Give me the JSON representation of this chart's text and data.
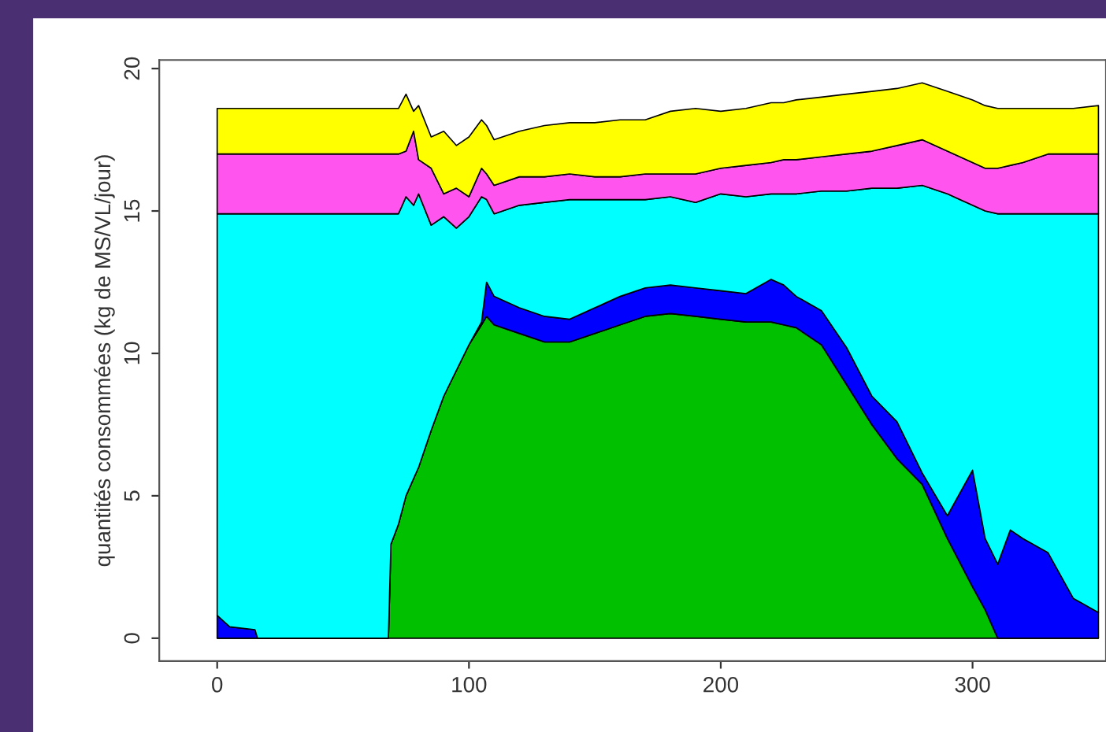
{
  "chart_data": {
    "type": "area",
    "stacked": true,
    "ylabel": "quantités consommées (kg de MS/VL/jour)",
    "x": [
      0,
      5,
      15,
      16,
      68,
      69,
      72,
      75,
      78,
      80,
      85,
      90,
      95,
      100,
      105,
      107,
      110,
      120,
      130,
      140,
      150,
      160,
      170,
      180,
      190,
      200,
      210,
      220,
      225,
      230,
      240,
      250,
      260,
      270,
      280,
      290,
      300,
      305,
      310,
      315,
      320,
      330,
      340,
      350
    ],
    "xlim": [
      -23,
      353
    ],
    "xticks": [
      0,
      100,
      200,
      300
    ],
    "ylim": [
      -0.8,
      20.3
    ],
    "yticks": [
      0,
      5,
      10,
      15,
      20
    ],
    "grid": false,
    "legend": false,
    "series": [
      {
        "color": "#00c000",
        "values": [
          0,
          0,
          0,
          0,
          0,
          3.3,
          4.0,
          5.0,
          5.6,
          6.0,
          7.3,
          8.5,
          9.4,
          10.3,
          11.0,
          11.3,
          11.0,
          10.7,
          10.4,
          10.4,
          10.7,
          11.0,
          11.3,
          11.4,
          11.3,
          11.2,
          11.1,
          11.1,
          11.0,
          10.9,
          10.3,
          8.9,
          7.5,
          6.3,
          5.4,
          3.5,
          1.8,
          1.0,
          0,
          0,
          0,
          0,
          0,
          0
        ]
      },
      {
        "color": "#0000ff",
        "values": [
          0.8,
          0.4,
          0.3,
          0,
          0,
          0,
          0,
          0,
          0,
          0,
          0,
          0,
          0,
          0,
          0.1,
          1.2,
          1.0,
          0.9,
          0.9,
          0.8,
          0.9,
          1.0,
          1.0,
          1.0,
          1.0,
          1.0,
          1.0,
          1.5,
          1.4,
          1.1,
          1.2,
          1.3,
          1.0,
          1.3,
          0.4,
          0.8,
          4.1,
          2.5,
          2.6,
          3.8,
          3.5,
          3.0,
          1.4,
          0.9
        ]
      },
      {
        "color": "#00ffff",
        "values": [
          14.1,
          14.5,
          14.6,
          14.9,
          14.9,
          11.6,
          10.9,
          10.5,
          9.6,
          9.6,
          7.2,
          6.3,
          5.0,
          4.5,
          4.4,
          2.9,
          2.9,
          3.6,
          4.0,
          4.2,
          3.8,
          3.4,
          3.1,
          3.1,
          3.0,
          3.4,
          3.4,
          3.0,
          3.2,
          3.6,
          4.2,
          5.5,
          7.3,
          8.2,
          10.1,
          11.3,
          9.3,
          11.5,
          12.3,
          11.1,
          11.4,
          11.9,
          13.5,
          14.0
        ]
      },
      {
        "color": "#ff55ee",
        "values": [
          2.1,
          2.1,
          2.1,
          2.1,
          2.1,
          2.1,
          2.1,
          1.6,
          2.6,
          1.2,
          2.0,
          0.8,
          1.4,
          0.7,
          1.0,
          0.9,
          1.0,
          1.0,
          0.9,
          0.9,
          0.8,
          0.8,
          0.9,
          0.8,
          1.0,
          0.9,
          1.1,
          1.1,
          1.2,
          1.2,
          1.2,
          1.3,
          1.3,
          1.5,
          1.6,
          1.5,
          1.5,
          1.5,
          1.6,
          1.7,
          1.8,
          2.1,
          2.1,
          2.1
        ]
      },
      {
        "color": "#ffff00",
        "values": [
          1.6,
          1.6,
          1.6,
          1.6,
          1.6,
          1.6,
          1.6,
          2.0,
          0.7,
          1.9,
          1.1,
          2.2,
          1.5,
          2.1,
          1.7,
          1.7,
          1.6,
          1.6,
          1.8,
          1.8,
          1.9,
          2.0,
          1.9,
          2.2,
          2.3,
          2.0,
          2.0,
          2.1,
          2.0,
          2.1,
          2.1,
          2.1,
          2.1,
          2.0,
          2.0,
          2.1,
          2.2,
          2.2,
          2.1,
          2.0,
          1.9,
          1.6,
          1.6,
          1.7
        ]
      }
    ]
  }
}
